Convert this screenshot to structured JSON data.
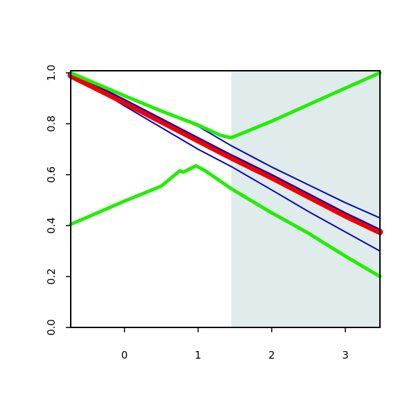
{
  "chart_data": {
    "type": "line",
    "xlim": [
      -0.73,
      3.47
    ],
    "ylim": [
      0,
      1
    ],
    "xticks": [
      0,
      1,
      2,
      3
    ],
    "yticks": [
      {
        "value": 0,
        "label": "0.0"
      },
      {
        "value": 0.2,
        "label": "0.2"
      },
      {
        "value": 0.4,
        "label": "0.4"
      },
      {
        "value": 0.6,
        "label": "0.6"
      },
      {
        "value": 0.8,
        "label": "0.8"
      },
      {
        "value": 1,
        "label": "1.0"
      }
    ],
    "shade": {
      "xrange": [
        1.45,
        3.47
      ],
      "color": "#e0ecec"
    },
    "series": [
      {
        "color": "#0000cc",
        "width": 2,
        "x": [
          -0.73,
          0,
          0.5,
          1,
          1.45,
          2,
          2.5,
          3,
          3.47
        ],
        "values": [
          1.0,
          0.91,
          0.85,
          0.79,
          0.714,
          0.63,
          0.56,
          0.49,
          0.43
        ]
      },
      {
        "color": "#0000cc",
        "width": 2,
        "x": [
          -0.73,
          0,
          0.5,
          1,
          1.45,
          2,
          2.5,
          3,
          3.47
        ],
        "values": [
          1.0,
          0.87,
          0.785,
          0.7,
          0.632,
          0.54,
          0.455,
          0.375,
          0.3
        ]
      },
      {
        "color": "#ee0000",
        "width": 9,
        "x": [
          -0.73,
          0,
          0.5,
          1,
          1.45,
          2,
          2.5,
          3,
          3.47
        ],
        "values": [
          0.99,
          0.885,
          0.81,
          0.735,
          0.668,
          0.59,
          0.515,
          0.44,
          0.375
        ]
      },
      {
        "color": "#0000cc",
        "width": 2,
        "x": [
          -0.73,
          0,
          0.5,
          1,
          1.45,
          2,
          2.5,
          3,
          3.47
        ],
        "values": [
          1.0,
          0.895,
          0.82,
          0.745,
          0.678,
          0.6,
          0.525,
          0.45,
          0.385
        ]
      },
      {
        "color": "#22ee00",
        "width": 5,
        "x": [
          -0.73,
          0,
          0.5,
          1,
          1.3,
          1.45,
          2,
          2.5,
          3,
          3.47
        ],
        "values": [
          1.0,
          0.91,
          0.85,
          0.795,
          0.755,
          0.745,
          0.81,
          0.875,
          0.94,
          1.0
        ]
      },
      {
        "color": "#22ee00",
        "width": 5,
        "x": [
          -0.73,
          0,
          0.5,
          0.75,
          0.8,
          0.97,
          1.1,
          1.45,
          2,
          2.5,
          3,
          3.47
        ],
        "values": [
          0.405,
          0.496,
          0.555,
          0.615,
          0.61,
          0.635,
          0.615,
          0.545,
          0.45,
          0.37,
          0.28,
          0.2
        ]
      }
    ]
  }
}
